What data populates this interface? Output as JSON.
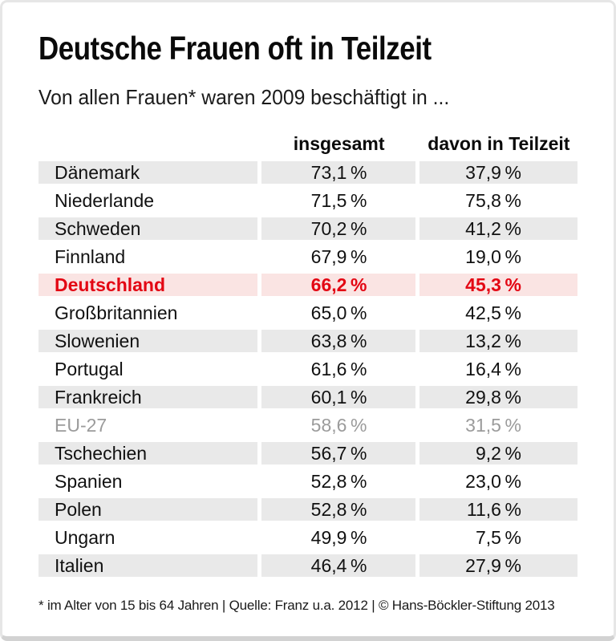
{
  "colors": {
    "accent_red": "#e30613",
    "highlight_row_bg": "#fae4e3",
    "zebra_row_bg": "#e9e9e9",
    "muted_text": "#9b9b9b",
    "text": "#111111",
    "card_border": "#e6e6e6",
    "card_border_bottom": "#d2d2d2"
  },
  "chart_data": {
    "type": "table",
    "title": "Deutsche Frauen oft in Teilzeit",
    "subtitle": "Von allen Frauen* waren 2009 beschäftigt in ...",
    "unit": "%",
    "columns": [
      "insgesamt",
      "davon in Teilzeit"
    ],
    "rows": [
      {
        "label": "Dänemark",
        "insgesamt": 73.1,
        "teilzeit": 37.9,
        "insgesamt_display": "73,1 %",
        "teilzeit_display": "37,9 %"
      },
      {
        "label": "Niederlande",
        "insgesamt": 71.5,
        "teilzeit": 75.8,
        "insgesamt_display": "71,5 %",
        "teilzeit_display": "75,8 %"
      },
      {
        "label": "Schweden",
        "insgesamt": 70.2,
        "teilzeit": 41.2,
        "insgesamt_display": "70,2 %",
        "teilzeit_display": "41,2 %"
      },
      {
        "label": "Finnland",
        "insgesamt": 67.9,
        "teilzeit": 19.0,
        "insgesamt_display": "67,9 %",
        "teilzeit_display": "19,0 %"
      },
      {
        "label": "Deutschland",
        "insgesamt": 66.2,
        "teilzeit": 45.3,
        "insgesamt_display": "66,2 %",
        "teilzeit_display": "45,3 %",
        "highlight": true
      },
      {
        "label": "Großbritannien",
        "insgesamt": 65.0,
        "teilzeit": 42.5,
        "insgesamt_display": "65,0 %",
        "teilzeit_display": "42,5 %"
      },
      {
        "label": "Slowenien",
        "insgesamt": 63.8,
        "teilzeit": 13.2,
        "insgesamt_display": "63,8 %",
        "teilzeit_display": "13,2 %"
      },
      {
        "label": "Portugal",
        "insgesamt": 61.6,
        "teilzeit": 16.4,
        "insgesamt_display": "61,6 %",
        "teilzeit_display": "16,4 %"
      },
      {
        "label": "Frankreich",
        "insgesamt": 60.1,
        "teilzeit": 29.8,
        "insgesamt_display": "60,1 %",
        "teilzeit_display": "29,8 %"
      },
      {
        "label": "EU-27",
        "insgesamt": 58.6,
        "teilzeit": 31.5,
        "insgesamt_display": "58,6 %",
        "teilzeit_display": "31,5 %",
        "muted": true
      },
      {
        "label": "Tschechien",
        "insgesamt": 56.7,
        "teilzeit": 9.2,
        "insgesamt_display": "56,7 %",
        "teilzeit_display": "9,2 %"
      },
      {
        "label": "Spanien",
        "insgesamt": 52.8,
        "teilzeit": 23.0,
        "insgesamt_display": "52,8 %",
        "teilzeit_display": "23,0 %"
      },
      {
        "label": "Polen",
        "insgesamt": 52.8,
        "teilzeit": 11.6,
        "insgesamt_display": "52,8 %",
        "teilzeit_display": "11,6 %"
      },
      {
        "label": "Ungarn",
        "insgesamt": 49.9,
        "teilzeit": 7.5,
        "insgesamt_display": "49,9 %",
        "teilzeit_display": "7,5 %"
      },
      {
        "label": "Italien",
        "insgesamt": 46.4,
        "teilzeit": 27.9,
        "insgesamt_display": "46,4 %",
        "teilzeit_display": "27,9 %"
      }
    ],
    "note": "* im Alter von 15 bis 64 Jahren | Quelle: Franz u.a. 2012 | © Hans-Böckler-Stiftung 2013",
    "layout": {
      "legend": "none",
      "grid": "off",
      "zebra_striping": true
    }
  }
}
